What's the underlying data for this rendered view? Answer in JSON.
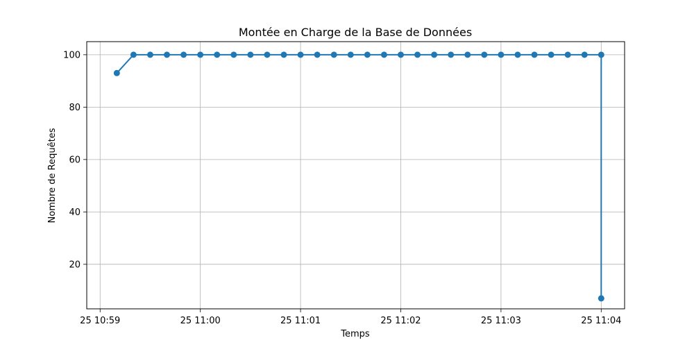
{
  "chart_data": {
    "type": "line",
    "title": "Montée en Charge de la Base de Données",
    "xlabel": "Temps",
    "ylabel": "Nombre de Requêtes",
    "grid": true,
    "line_color": "#1f77b4",
    "marker": "circle",
    "x_ticks": [
      "25 10:59",
      "25 11:00",
      "25 11:01",
      "25 11:02",
      "25 11:03",
      "25 11:04"
    ],
    "y_ticks": [
      "20",
      "40",
      "60",
      "80",
      "100"
    ],
    "xlim": [
      "10:58:52",
      "11:04:14"
    ],
    "ylim": [
      3,
      105
    ],
    "series": [
      {
        "x": [
          "10:59:10",
          "10:59:20",
          "10:59:30",
          "10:59:40",
          "10:59:50",
          "11:00:00",
          "11:00:10",
          "11:00:20",
          "11:00:30",
          "11:00:40",
          "11:00:50",
          "11:01:00",
          "11:01:10",
          "11:01:20",
          "11:01:30",
          "11:01:40",
          "11:01:50",
          "11:02:00",
          "11:02:10",
          "11:02:20",
          "11:02:30",
          "11:02:40",
          "11:02:50",
          "11:03:00",
          "11:03:10",
          "11:03:20",
          "11:03:30",
          "11:03:40",
          "11:03:50",
          "11:04:00",
          "11:04:00"
        ],
        "y": [
          93,
          100,
          100,
          100,
          100,
          100,
          100,
          100,
          100,
          100,
          100,
          100,
          100,
          100,
          100,
          100,
          100,
          100,
          100,
          100,
          100,
          100,
          100,
          100,
          100,
          100,
          100,
          100,
          100,
          100,
          7
        ]
      }
    ]
  }
}
